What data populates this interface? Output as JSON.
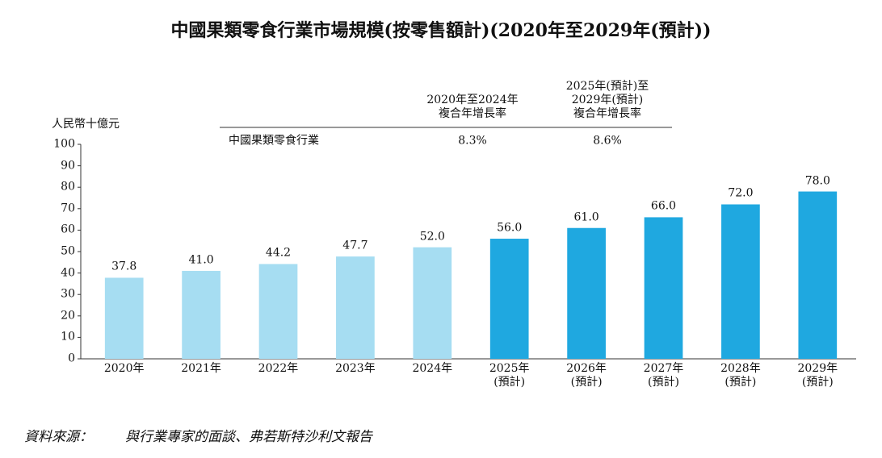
{
  "chart_data": {
    "type": "bar",
    "title": "中國果類零食行業市場規模(按零售額計)(2020年至2029年(預計))",
    "y_axis_label": "人民幣十億元",
    "categories": [
      "2020年",
      "2021年",
      "2022年",
      "2023年",
      "2024年",
      "2025年\n(預計)",
      "2026年\n(預計)",
      "2027年\n(預計)",
      "2028年\n(預計)",
      "2029年\n(預計)"
    ],
    "values": [
      37.8,
      41.0,
      44.2,
      47.7,
      52.0,
      56.0,
      61.0,
      66.0,
      72.0,
      78.0
    ],
    "value_labels": [
      "37.8",
      "41.0",
      "44.2",
      "47.7",
      "52.0",
      "56.0",
      "61.0",
      "66.0",
      "72.0",
      "78.0"
    ],
    "colors": [
      "#a6ddf2",
      "#a6ddf2",
      "#a6ddf2",
      "#a6ddf2",
      "#a6ddf2",
      "#1fa8e0",
      "#1fa8e0",
      "#1fa8e0",
      "#1fa8e0",
      "#1fa8e0"
    ],
    "ylim": [
      0,
      100
    ],
    "yticks": [
      0,
      10,
      20,
      30,
      40,
      50,
      60,
      70,
      80,
      90,
      100
    ],
    "cagr_table": {
      "headers": [
        "2020年至2024年\n複合年增長率",
        "2025年(預計)至\n2029年(預計)\n複合年增長率"
      ],
      "rows": [
        [
          "中國果類零食行業",
          "8.3%",
          "8.6%"
        ]
      ]
    },
    "source_label": "資料來源：",
    "source": "與行業專家的面談、弗若斯特沙利文報告"
  }
}
